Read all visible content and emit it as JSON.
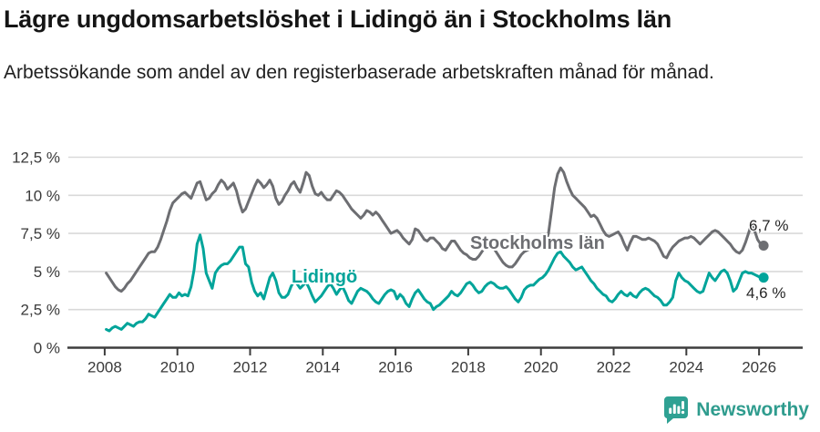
{
  "header": {
    "title": "Lägre ungdomsarbetslöshet i Lidingö än i Stockholms län",
    "subtitle": "Arbetssökande som andel av den registerbaserade arbetskraften månad för månad."
  },
  "chart_data": {
    "type": "line",
    "title": "Lägre ungdomsarbetslöshet i Lidingö än i Stockholms län",
    "xlabel": "",
    "ylabel": "",
    "frequency": "monthly",
    "start_year": 2008,
    "end_point": "2026-02",
    "xlim": [
      2007.0,
      2027.2
    ],
    "ylim": [
      0,
      12.5
    ],
    "grid": "horizontal",
    "grid_color": "#d9d9d9",
    "axis_color": "#3d3d3d",
    "tick_label_color": "#3a3a3a",
    "x_ticks": [
      2008,
      2010,
      2012,
      2014,
      2016,
      2018,
      2020,
      2022,
      2024,
      2026
    ],
    "x_tick_labels": [
      "2008",
      "2010",
      "2012",
      "2014",
      "2016",
      "2018",
      "2020",
      "2022",
      "2024",
      "2026"
    ],
    "y_ticks": [
      0,
      2.5,
      5,
      7.5,
      10,
      12.5
    ],
    "y_tick_labels": [
      "0 %",
      "2,5 %",
      "5 %",
      "7,5 %",
      "10 %",
      "12,5 %"
    ],
    "series": [
      {
        "name": "Stockholms län",
        "color": "#6d6e72",
        "end_label": "6,7 %",
        "end_value": 6.7,
        "values": [
          4.9,
          4.6,
          4.3,
          4.0,
          3.8,
          3.7,
          3.9,
          4.2,
          4.4,
          4.7,
          5.0,
          5.3,
          5.6,
          5.9,
          6.2,
          6.3,
          6.3,
          6.6,
          7.1,
          7.7,
          8.3,
          9.0,
          9.5,
          9.7,
          9.9,
          10.1,
          10.2,
          10.0,
          9.8,
          10.3,
          10.8,
          10.9,
          10.3,
          9.7,
          9.8,
          10.1,
          10.3,
          10.7,
          11.0,
          10.8,
          10.4,
          10.6,
          10.8,
          10.3,
          9.5,
          8.9,
          9.1,
          9.6,
          10.1,
          10.6,
          11.0,
          10.8,
          10.5,
          10.7,
          11.0,
          10.6,
          9.8,
          9.4,
          9.6,
          10.0,
          10.3,
          10.7,
          10.9,
          10.5,
          10.2,
          10.8,
          11.5,
          11.3,
          10.6,
          10.1,
          10.0,
          10.2,
          9.9,
          9.7,
          9.7,
          10.0,
          10.3,
          10.2,
          10.0,
          9.7,
          9.4,
          9.1,
          8.9,
          8.7,
          8.5,
          8.7,
          9.0,
          8.9,
          8.7,
          8.9,
          8.7,
          8.4,
          8.1,
          7.8,
          7.5,
          7.6,
          7.7,
          7.5,
          7.2,
          7.0,
          6.8,
          7.1,
          7.8,
          7.7,
          7.4,
          7.1,
          7.0,
          7.2,
          7.2,
          7.0,
          6.8,
          6.5,
          6.4,
          6.7,
          7.0,
          7.0,
          6.7,
          6.4,
          6.2,
          6.1,
          5.9,
          5.8,
          5.8,
          6.0,
          6.3,
          6.6,
          6.9,
          6.8,
          6.5,
          6.2,
          5.9,
          5.6,
          5.4,
          5.3,
          5.3,
          5.5,
          5.8,
          6.1,
          6.3,
          6.4,
          6.5,
          6.5,
          6.6,
          6.6,
          6.7,
          6.9,
          7.5,
          9.0,
          10.5,
          11.4,
          11.8,
          11.5,
          10.9,
          10.4,
          10.0,
          9.8,
          9.6,
          9.4,
          9.2,
          8.9,
          8.6,
          8.7,
          8.5,
          8.1,
          7.7,
          7.4,
          7.3,
          7.4,
          7.5,
          7.6,
          7.3,
          6.8,
          6.4,
          6.9,
          7.3,
          7.3,
          7.2,
          7.1,
          7.1,
          7.2,
          7.1,
          7.0,
          6.8,
          6.4,
          6.0,
          5.9,
          6.3,
          6.6,
          6.8,
          7.0,
          7.1,
          7.2,
          7.2,
          7.3,
          7.2,
          7.0,
          6.8,
          7.0,
          7.2,
          7.4,
          7.6,
          7.7,
          7.6,
          7.4,
          7.2,
          7.0,
          6.8,
          6.5,
          6.3,
          6.2,
          6.4,
          6.9,
          7.5,
          8.1,
          7.7,
          7.1,
          6.8,
          6.7
        ]
      },
      {
        "name": "Lidingö",
        "color": "#00a49a",
        "end_label": "4,6 %",
        "end_value": 4.6,
        "values": [
          1.2,
          1.1,
          1.3,
          1.4,
          1.3,
          1.2,
          1.4,
          1.6,
          1.5,
          1.4,
          1.6,
          1.7,
          1.7,
          1.9,
          2.2,
          2.1,
          2.0,
          2.3,
          2.6,
          2.9,
          3.2,
          3.5,
          3.3,
          3.3,
          3.6,
          3.4,
          3.5,
          3.4,
          4.0,
          5.1,
          6.8,
          7.4,
          6.5,
          4.9,
          4.4,
          3.9,
          4.9,
          5.2,
          5.4,
          5.5,
          5.5,
          5.7,
          6.0,
          6.3,
          6.6,
          6.6,
          5.5,
          5.3,
          4.3,
          3.7,
          3.4,
          3.6,
          3.2,
          3.9,
          4.6,
          4.9,
          4.4,
          3.6,
          3.3,
          3.3,
          3.5,
          4.0,
          4.4,
          4.2,
          3.9,
          4.1,
          4.3,
          3.9,
          3.4,
          3.0,
          3.2,
          3.4,
          3.7,
          4.0,
          4.2,
          3.9,
          3.5,
          3.8,
          4.0,
          3.6,
          3.1,
          2.9,
          3.3,
          3.7,
          3.9,
          3.8,
          3.7,
          3.5,
          3.2,
          3.0,
          2.9,
          3.2,
          3.5,
          3.7,
          3.8,
          3.7,
          3.2,
          3.5,
          3.3,
          2.9,
          2.7,
          3.2,
          3.6,
          3.8,
          3.5,
          3.2,
          3.0,
          2.9,
          2.5,
          2.7,
          2.8,
          3.0,
          3.2,
          3.4,
          3.7,
          3.5,
          3.4,
          3.6,
          3.9,
          4.2,
          4.3,
          4.1,
          3.8,
          3.6,
          3.7,
          4.0,
          4.2,
          4.3,
          4.2,
          4.0,
          3.9,
          3.9,
          4.0,
          3.8,
          3.5,
          3.2,
          3.0,
          3.3,
          3.8,
          4.0,
          4.1,
          4.1,
          4.3,
          4.5,
          4.6,
          4.8,
          5.1,
          5.5,
          5.9,
          6.2,
          6.3,
          6.0,
          5.8,
          5.6,
          5.3,
          5.1,
          5.2,
          5.3,
          5.0,
          4.7,
          4.4,
          4.2,
          3.9,
          3.7,
          3.5,
          3.4,
          3.1,
          3.0,
          3.2,
          3.5,
          3.7,
          3.5,
          3.4,
          3.6,
          3.4,
          3.3,
          3.6,
          3.8,
          3.9,
          3.8,
          3.6,
          3.4,
          3.3,
          3.1,
          2.8,
          2.8,
          3.0,
          3.3,
          4.4,
          4.9,
          4.6,
          4.4,
          4.3,
          4.1,
          3.9,
          3.7,
          3.6,
          3.7,
          4.3,
          4.9,
          4.6,
          4.4,
          4.7,
          5.0,
          5.1,
          4.9,
          4.4,
          3.7,
          3.9,
          4.4,
          4.9,
          5.0,
          4.9,
          4.9,
          4.8,
          4.7,
          4.6,
          4.6
        ]
      }
    ]
  },
  "footer": {
    "brand": "Newsworthy",
    "brand_color": "#2f9c8e"
  }
}
